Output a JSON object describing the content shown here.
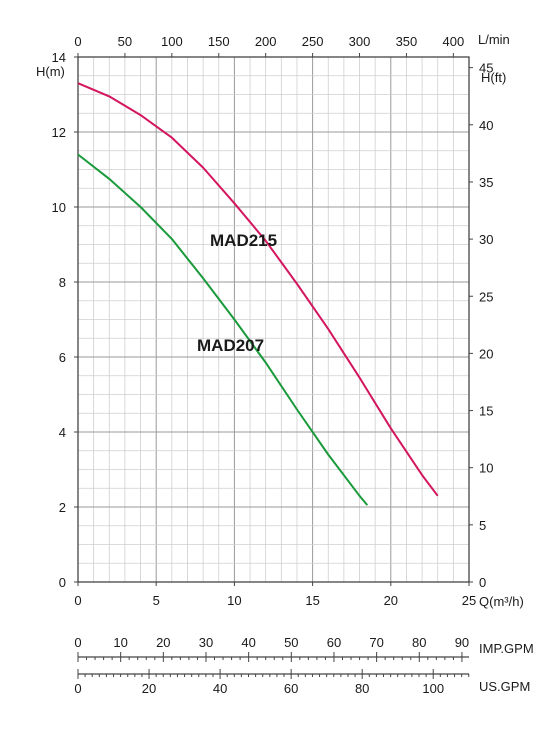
{
  "chart_data": {
    "type": "line",
    "xlabel": "Q(m³/h)",
    "ylabel_left": "H(m)",
    "ylabel_right": "H(ft)",
    "top_axis_label": "L/min",
    "imp_axis_label": "IMP.GPM",
    "us_axis_label": "US.GPM",
    "xlim": [
      0,
      25
    ],
    "ylim": [
      0,
      14
    ],
    "grid": true,
    "x_ticks": [
      "0",
      "5",
      "10",
      "15",
      "20",
      "25"
    ],
    "y_ticks": [
      "0",
      "2",
      "4",
      "6",
      "8",
      "10",
      "12",
      "14"
    ],
    "top_ticks": [
      "0",
      "50",
      "100",
      "150",
      "200",
      "250",
      "300",
      "350",
      "400"
    ],
    "right_ticks": [
      "0",
      "5",
      "10",
      "15",
      "20",
      "25",
      "30",
      "35",
      "40",
      "45"
    ],
    "imp_ticks": [
      "0",
      "10",
      "20",
      "30",
      "40",
      "50",
      "60",
      "70",
      "80",
      "90"
    ],
    "us_ticks": [
      "0",
      "20",
      "40",
      "60",
      "80",
      "100"
    ],
    "series": [
      {
        "name": "MAD215",
        "color": "#d4165f",
        "x": [
          0,
          2,
          4,
          6,
          8,
          10,
          12,
          14,
          16,
          18,
          20,
          22,
          23
        ],
        "y": [
          13.3,
          12.95,
          12.45,
          11.85,
          11.05,
          10.1,
          9.1,
          7.95,
          6.75,
          5.45,
          4.1,
          2.85,
          2.3
        ]
      },
      {
        "name": "MAD207",
        "color": "#1a9a3a",
        "x": [
          0,
          2,
          4,
          6,
          8,
          10,
          12,
          14,
          16,
          18,
          18.5
        ],
        "y": [
          11.4,
          10.75,
          10.0,
          9.15,
          8.1,
          7.0,
          5.85,
          4.6,
          3.4,
          2.3,
          2.05
        ]
      }
    ]
  }
}
